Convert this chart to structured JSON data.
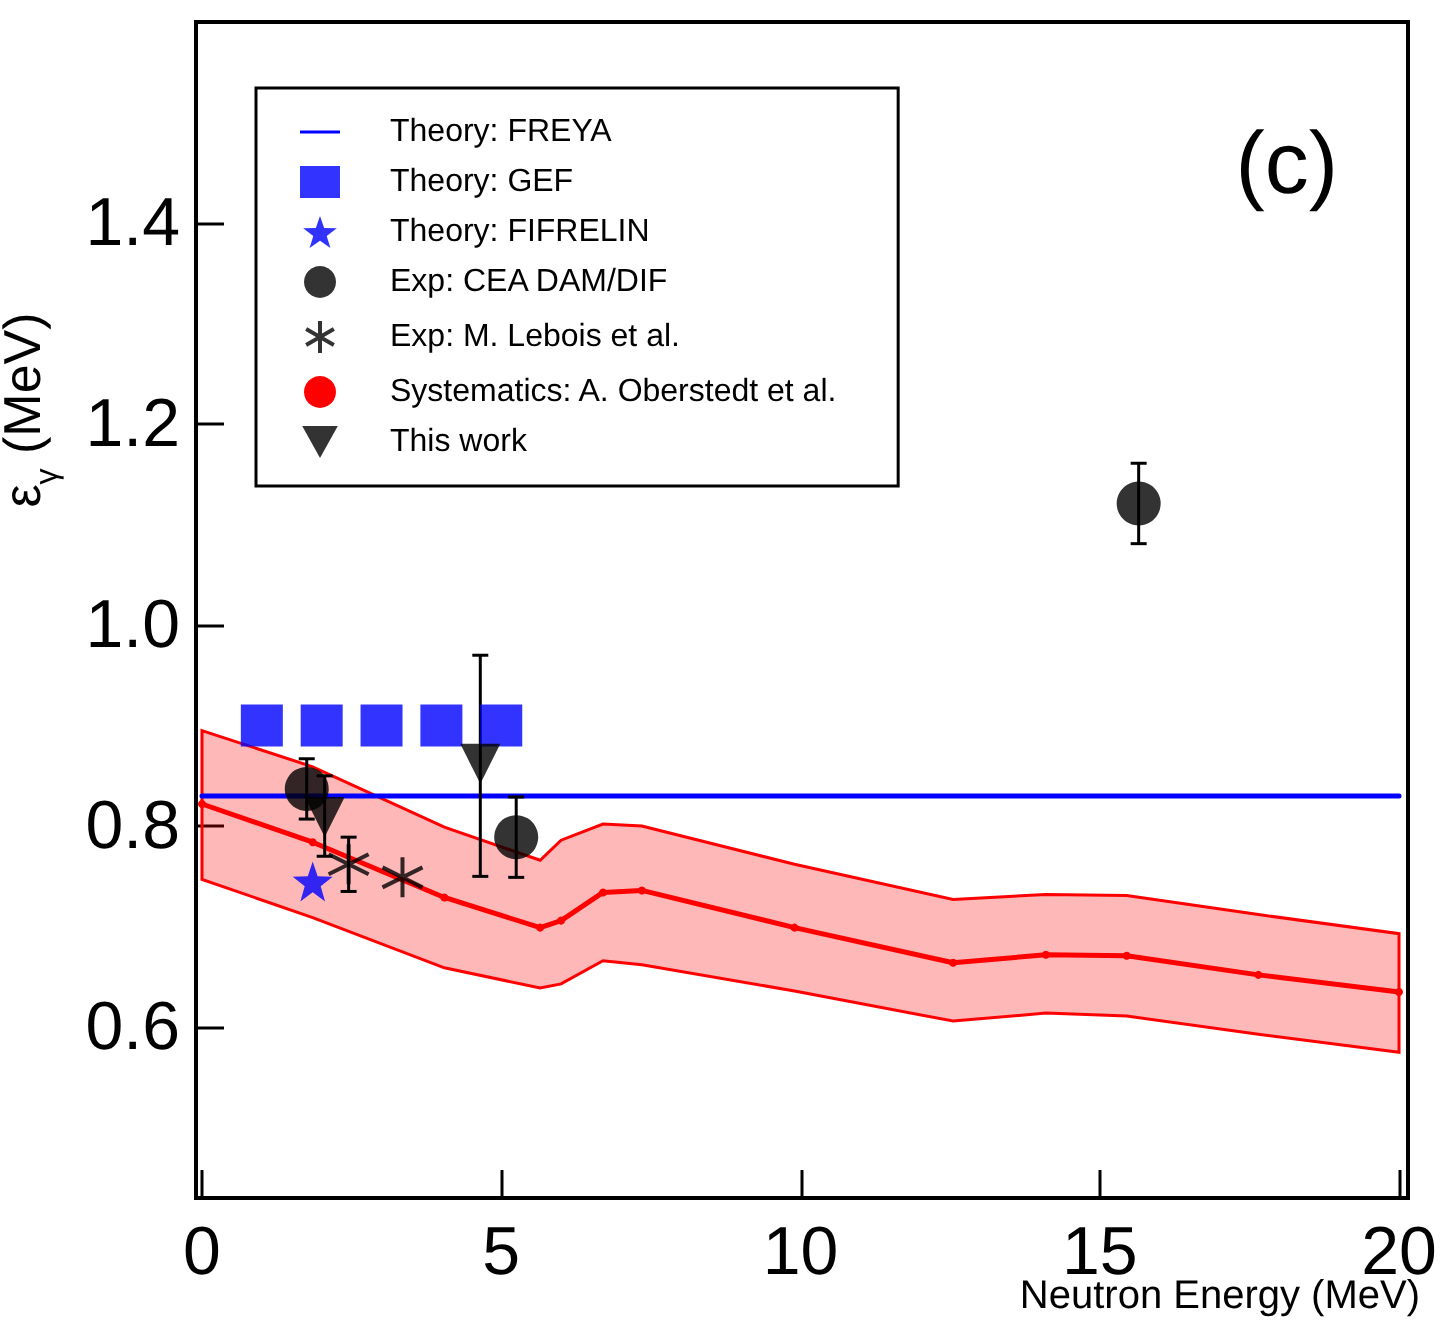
{
  "chart_data": {
    "type": "scatter",
    "xlabel": "Neutron Energy (MeV)",
    "ylabel": "ε$_{γ}$ (MeV)",
    "annotations": [
      "(c)"
    ],
    "xlim": [
      -0.1,
      20.15
    ],
    "xticks": [
      0,
      5,
      10,
      15,
      20
    ],
    "ylim": [
      0.43,
      1.6
    ],
    "yticks": [
      {
        "value": 0.6,
        "label": "0.6"
      },
      {
        "value": 0.8,
        "label": "0.8"
      },
      {
        "value": 1.0,
        "label": "1.0"
      },
      {
        "value": 1.2,
        "label": "1.2"
      },
      {
        "value": 1.4,
        "label": "1.4"
      }
    ],
    "grid": false,
    "legend": "top left",
    "series": [
      {
        "name": "Theory: FREYA",
        "type": "line",
        "marker": "none",
        "color": "#0000ff",
        "x": [
          0,
          20
        ],
        "values": [
          0.83,
          0.83
        ]
      },
      {
        "name": "Theory: GEF",
        "marker": "square",
        "color": "#0000ff",
        "x": [
          1,
          2,
          3,
          4,
          5
        ],
        "values": [
          0.9,
          0.9,
          0.9,
          0.9,
          0.9
        ]
      },
      {
        "name": "Theory: FIFRELIN",
        "marker": "star",
        "color": "#0000ff",
        "x": [
          1.85
        ],
        "values": [
          0.745
        ]
      },
      {
        "name": "Exp: CEA DAM/DIF",
        "marker": "circle",
        "color": "#000000",
        "x": [
          1.75,
          5.25,
          15.65
        ],
        "values": [
          0.837,
          0.789,
          1.121
        ],
        "errors": [
          0.03,
          0.04,
          0.04
        ]
      },
      {
        "name": "Exp: M. Lebois et al.",
        "marker": "cross",
        "color": "#000000",
        "x": [
          2.45,
          3.35
        ],
        "values": [
          0.762,
          0.749
        ],
        "errors": [
          0.027,
          null
        ]
      },
      {
        "name": "Systematics: A. Oberstedt et al.",
        "type": "line",
        "marker": "circle",
        "color": "#ff0000",
        "x": [
          0,
          1.85,
          4.05,
          5.65,
          6.0,
          6.7,
          7.35,
          9.9,
          12.55,
          14.1,
          15.45,
          17.65,
          20
        ],
        "values": [
          0.822,
          0.784,
          0.729,
          0.699,
          0.706,
          0.734,
          0.736,
          0.699,
          0.664,
          0.672,
          0.671,
          0.652,
          0.635
        ],
        "lower": [
          0.747,
          0.709,
          0.659,
          0.639,
          0.643,
          0.666,
          0.662,
          0.636,
          0.606,
          0.614,
          0.611,
          0.593,
          0.575
        ],
        "upper": [
          0.895,
          0.859,
          0.799,
          0.766,
          0.786,
          0.802,
          0.8,
          0.762,
          0.727,
          0.732,
          0.731,
          0.712,
          0.693
        ]
      },
      {
        "name": "This work",
        "marker": "triangle",
        "color": "#000000",
        "x": [
          2.05,
          4.65
        ],
        "values": [
          0.809,
          0.862
        ],
        "errors": [
          [
            0.77,
            0.85
          ],
          [
            0.75,
            0.97
          ]
        ]
      }
    ]
  }
}
